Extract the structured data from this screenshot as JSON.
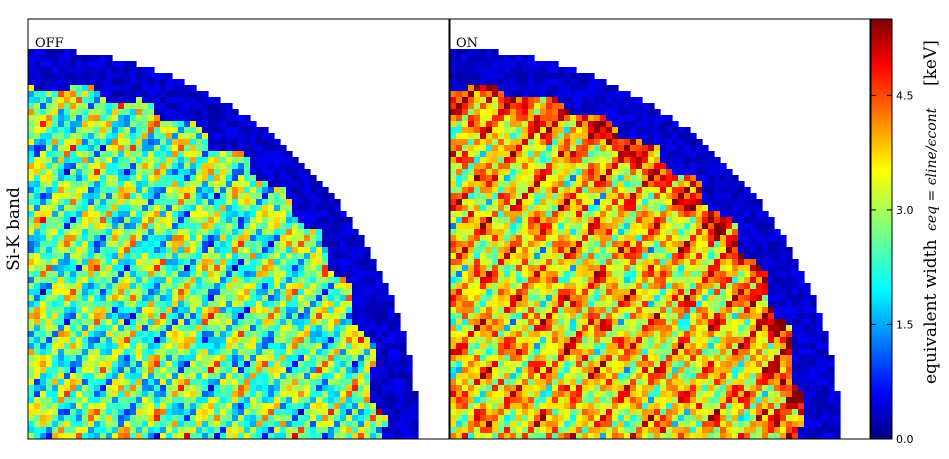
{
  "chart_data": {
    "type": "heatmap",
    "row_label": "Si-K band",
    "panels": [
      {
        "label": "OFF",
        "mean_level": 2.6,
        "hot_fraction": 0.1,
        "cold_fraction": 0.22
      },
      {
        "label": "ON",
        "mean_level": 3.6,
        "hot_fraction": 0.38,
        "cold_fraction": 0.12
      }
    ],
    "colorbar": {
      "colormap": "jet",
      "label": "equivalent width",
      "formula": "ϵeq = ϵline/ϵcont",
      "unit": "[keV]",
      "range": [
        0.0,
        5.5
      ],
      "ticks": [
        0.0,
        1.5,
        3.0,
        4.5
      ],
      "tick_labels": [
        "0.0",
        "1.5",
        "3.0",
        "4.5"
      ]
    }
  }
}
